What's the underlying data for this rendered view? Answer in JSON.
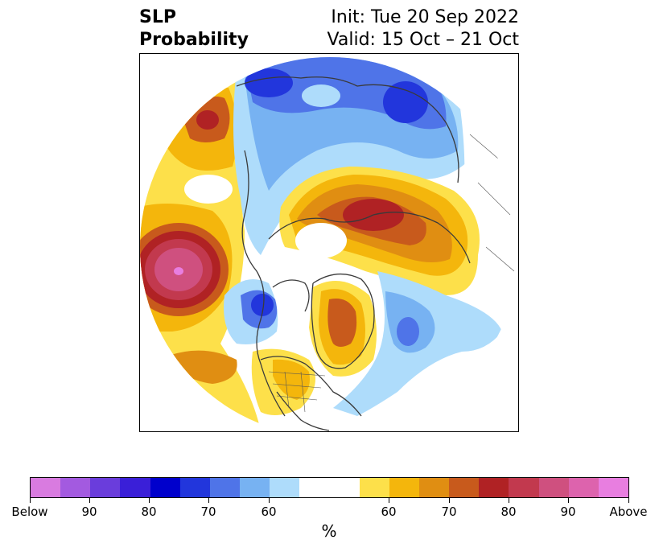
{
  "header": {
    "title_line1": "SLP",
    "title_line2": "Probability",
    "init": "Init: Tue 20 Sep 2022",
    "valid": "Valid: 15 Oct – 21 Oct"
  },
  "colorbar": {
    "unit_label": "%",
    "tick_labels": [
      "Below",
      "90",
      "80",
      "70",
      "60",
      "60",
      "70",
      "80",
      "90",
      "Above"
    ],
    "colors": [
      "#d97be0",
      "#a35ae0",
      "#6a3ddc",
      "#3a1fd8",
      "#0000cc",
      "#2236dc",
      "#4f74e8",
      "#77b2f2",
      "#aedcfb",
      "#ffffff",
      "#fde04a",
      "#f4b60c",
      "#e08e12",
      "#c85a1c",
      "#b02224",
      "#c2394e",
      "#cf507f",
      "#dd63ad",
      "#e87ee0"
    ]
  },
  "map": {
    "projection": "north polar stereographic",
    "field": "SLP probability",
    "colors": {
      "above_60": "#fde04a",
      "above_65": "#f4b60c",
      "above_70": "#e08e12",
      "above_75": "#c85a1c",
      "above_80": "#b02224",
      "above_85": "#c2394e",
      "above_90": "#cf507f",
      "below_60": "#aedcfb",
      "below_65": "#77b2f2",
      "below_70": "#4f74e8",
      "below_75": "#2236dc",
      "coast": "#3a3a3a"
    }
  }
}
